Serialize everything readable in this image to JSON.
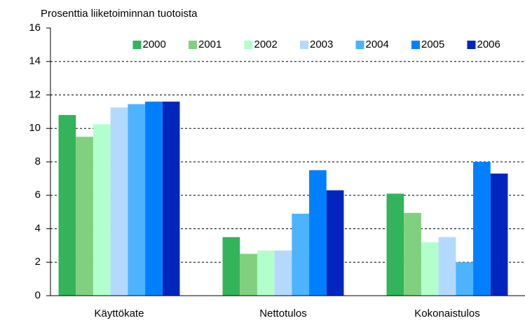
{
  "chart_data": {
    "type": "bar",
    "subtitle": "Prosenttia liiketoiminnan tuotoista",
    "categories": [
      "Käyttökate",
      "Nettotulos",
      "Kokonaistulos"
    ],
    "series": [
      {
        "name": "2000",
        "color": "#33b35a",
        "values": [
          10.8,
          3.5,
          6.1
        ]
      },
      {
        "name": "2001",
        "color": "#80d080",
        "values": [
          9.5,
          2.5,
          4.95
        ]
      },
      {
        "name": "2002",
        "color": "#b3ffcc",
        "values": [
          10.25,
          2.7,
          3.2
        ]
      },
      {
        "name": "2003",
        "color": "#b3d9ff",
        "values": [
          11.25,
          2.7,
          3.5
        ]
      },
      {
        "name": "2004",
        "color": "#4db3ff",
        "values": [
          11.45,
          4.9,
          2.0
        ]
      },
      {
        "name": "2005",
        "color": "#0080ff",
        "values": [
          11.6,
          7.5,
          8.0
        ]
      },
      {
        "name": "2006",
        "color": "#0026c0",
        "values": [
          11.6,
          6.3,
          7.3
        ]
      }
    ],
    "ylim": [
      0,
      16
    ],
    "yticks": [
      0,
      2,
      4,
      6,
      8,
      10,
      12,
      14,
      16
    ],
    "grid": true,
    "legend": "top-right"
  }
}
